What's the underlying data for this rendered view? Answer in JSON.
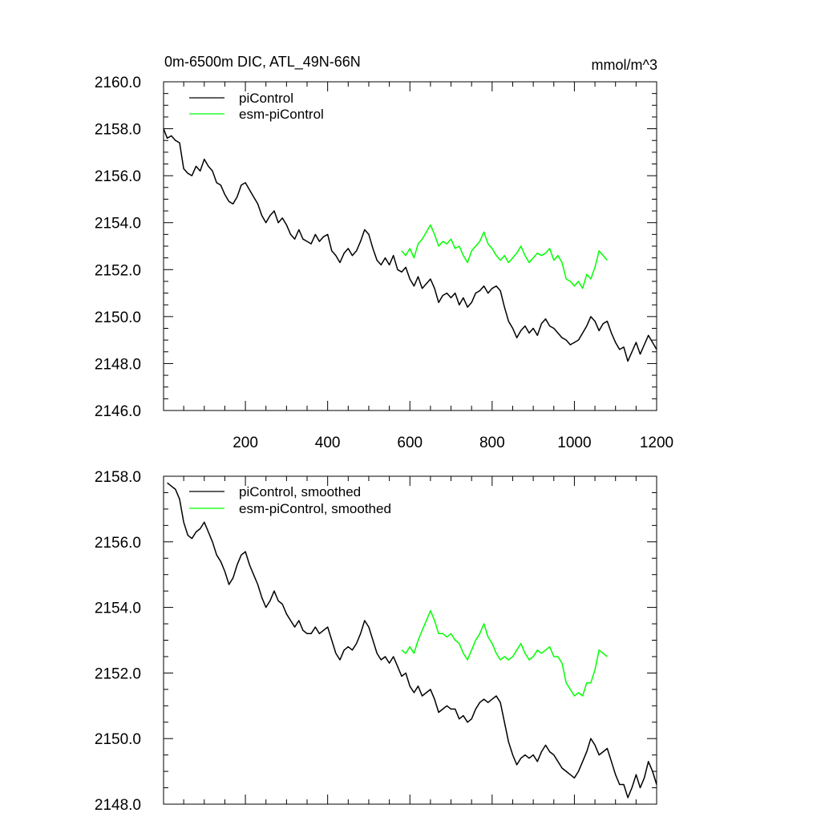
{
  "chart_data": [
    {
      "type": "line",
      "title": "0m-6500m DIC, ATL_49N-66N",
      "units": "mmol/m^3",
      "xlabel": "",
      "ylabel": "",
      "xlim": [
        1,
        1200
      ],
      "ylim": [
        2146,
        2160
      ],
      "x_ticks": [
        200,
        400,
        600,
        800,
        1000,
        1200
      ],
      "y_ticks": [
        2146,
        2148,
        2150,
        2152,
        2154,
        2156,
        2158,
        2160
      ],
      "x_tick_labels": [
        "200",
        "400",
        "600",
        "800",
        "1000",
        "1200"
      ],
      "y_tick_labels": [
        "2146.0",
        "2148.0",
        "2150.0",
        "2152.0",
        "2154.0",
        "2156.0",
        "2158.0",
        "2160.0"
      ],
      "legend_position": "top-left",
      "series": [
        {
          "name": "piControl",
          "color": "#000000",
          "x": [
            1,
            10,
            20,
            30,
            40,
            50,
            60,
            70,
            80,
            90,
            100,
            110,
            120,
            130,
            140,
            150,
            160,
            170,
            180,
            190,
            200,
            210,
            220,
            230,
            240,
            250,
            260,
            270,
            280,
            290,
            300,
            310,
            320,
            330,
            340,
            350,
            360,
            370,
            380,
            390,
            400,
            410,
            420,
            430,
            440,
            450,
            460,
            470,
            480,
            490,
            500,
            510,
            520,
            530,
            540,
            550,
            560,
            570,
            580,
            590,
            600,
            610,
            620,
            630,
            640,
            650,
            660,
            670,
            680,
            690,
            700,
            710,
            720,
            730,
            740,
            750,
            760,
            770,
            780,
            790,
            800,
            810,
            820,
            830,
            840,
            850,
            860,
            870,
            880,
            890,
            900,
            910,
            920,
            930,
            940,
            950,
            960,
            970,
            980,
            990,
            1000,
            1010,
            1020,
            1030,
            1040,
            1050,
            1060,
            1070,
            1080,
            1090,
            1100,
            1110,
            1120,
            1130,
            1140,
            1150,
            1160,
            1170,
            1180,
            1190,
            1200
          ],
          "values": [
            2158.0,
            2157.6,
            2157.7,
            2157.5,
            2157.4,
            2156.3,
            2156.1,
            2156.0,
            2156.4,
            2156.2,
            2156.7,
            2156.4,
            2156.2,
            2155.7,
            2155.6,
            2155.2,
            2154.9,
            2154.8,
            2155.1,
            2155.6,
            2155.7,
            2155.4,
            2155.1,
            2154.8,
            2154.3,
            2154.0,
            2154.3,
            2154.5,
            2154.0,
            2154.2,
            2153.9,
            2153.5,
            2153.3,
            2153.7,
            2153.3,
            2153.2,
            2153.1,
            2153.5,
            2153.2,
            2153.4,
            2153.5,
            2152.8,
            2152.6,
            2152.3,
            2152.7,
            2152.9,
            2152.6,
            2152.8,
            2153.2,
            2153.7,
            2153.5,
            2152.9,
            2152.4,
            2152.2,
            2152.5,
            2152.2,
            2152.6,
            2152.0,
            2151.9,
            2152.1,
            2151.6,
            2151.3,
            2151.7,
            2151.2,
            2151.4,
            2151.6,
            2151.2,
            2150.6,
            2150.9,
            2151.0,
            2150.8,
            2151.0,
            2150.5,
            2150.8,
            2150.4,
            2150.6,
            2151.0,
            2151.1,
            2151.3,
            2151.0,
            2151.2,
            2151.3,
            2151.1,
            2150.4,
            2149.8,
            2149.5,
            2149.1,
            2149.4,
            2149.6,
            2149.3,
            2149.5,
            2149.2,
            2149.7,
            2149.9,
            2149.6,
            2149.5,
            2149.3,
            2149.1,
            2149.0,
            2148.8,
            2148.9,
            2149.0,
            2149.3,
            2149.6,
            2150.0,
            2149.8,
            2149.4,
            2149.7,
            2149.8,
            2149.3,
            2148.9,
            2148.6,
            2148.7,
            2148.1,
            2148.5,
            2148.9,
            2148.4,
            2148.8,
            2149.2,
            2148.9,
            2148.6
          ]
        },
        {
          "name": "esm-piControl",
          "color": "#00ff00",
          "x": [
            580,
            590,
            600,
            610,
            620,
            630,
            640,
            650,
            660,
            670,
            680,
            690,
            700,
            710,
            720,
            730,
            740,
            750,
            760,
            770,
            780,
            790,
            800,
            810,
            820,
            830,
            840,
            850,
            860,
            870,
            880,
            890,
            900,
            910,
            920,
            930,
            940,
            950,
            960,
            970,
            980,
            990,
            1000,
            1010,
            1020,
            1030,
            1040,
            1050,
            1060,
            1070,
            1080
          ],
          "values": [
            2152.8,
            2152.6,
            2152.9,
            2152.5,
            2153.1,
            2153.3,
            2153.6,
            2153.9,
            2153.5,
            2153.0,
            2153.2,
            2153.1,
            2153.3,
            2152.9,
            2153.0,
            2152.6,
            2152.3,
            2152.8,
            2153.0,
            2153.2,
            2153.6,
            2153.1,
            2152.9,
            2152.6,
            2152.4,
            2152.6,
            2152.3,
            2152.5,
            2152.7,
            2153.0,
            2152.6,
            2152.3,
            2152.5,
            2152.7,
            2152.6,
            2152.7,
            2152.9,
            2152.4,
            2152.6,
            2152.3,
            2151.6,
            2151.5,
            2151.3,
            2151.5,
            2151.2,
            2151.8,
            2151.6,
            2152.1,
            2152.8,
            2152.6,
            2152.4
          ]
        }
      ]
    },
    {
      "type": "line",
      "title": "",
      "xlabel": "",
      "ylabel": "",
      "xlim": [
        1,
        1200
      ],
      "ylim": [
        2148,
        2158
      ],
      "x_ticks": [
        200,
        400,
        600,
        800,
        1000,
        1200
      ],
      "y_ticks": [
        2148,
        2150,
        2152,
        2154,
        2156,
        2158
      ],
      "y_tick_labels": [
        "2148.0",
        "2150.0",
        "2152.0",
        "2154.0",
        "2156.0",
        "2158.0"
      ],
      "legend_position": "top-left",
      "series": [
        {
          "name": "piControl, smoothed",
          "color": "#000000",
          "x": [
            10,
            20,
            30,
            40,
            50,
            60,
            70,
            80,
            90,
            100,
            110,
            120,
            130,
            140,
            150,
            160,
            170,
            180,
            190,
            200,
            210,
            220,
            230,
            240,
            250,
            260,
            270,
            280,
            290,
            300,
            310,
            320,
            330,
            340,
            350,
            360,
            370,
            380,
            390,
            400,
            410,
            420,
            430,
            440,
            450,
            460,
            470,
            480,
            490,
            500,
            510,
            520,
            530,
            540,
            550,
            560,
            570,
            580,
            590,
            600,
            610,
            620,
            630,
            640,
            650,
            660,
            670,
            680,
            690,
            700,
            710,
            720,
            730,
            740,
            750,
            760,
            770,
            780,
            790,
            800,
            810,
            820,
            830,
            840,
            850,
            860,
            870,
            880,
            890,
            900,
            910,
            920,
            930,
            940,
            950,
            960,
            970,
            980,
            990,
            1000,
            1010,
            1020,
            1030,
            1040,
            1050,
            1060,
            1070,
            1080,
            1090,
            1100,
            1110,
            1120,
            1130,
            1140,
            1150,
            1160,
            1170,
            1180,
            1190,
            1200
          ],
          "values": [
            2157.8,
            2157.7,
            2157.6,
            2157.3,
            2156.6,
            2156.2,
            2156.1,
            2156.3,
            2156.4,
            2156.6,
            2156.3,
            2156.0,
            2155.6,
            2155.4,
            2155.1,
            2154.7,
            2154.9,
            2155.3,
            2155.6,
            2155.7,
            2155.3,
            2155.0,
            2154.7,
            2154.3,
            2154.0,
            2154.2,
            2154.5,
            2154.2,
            2154.1,
            2153.8,
            2153.6,
            2153.4,
            2153.6,
            2153.3,
            2153.2,
            2153.2,
            2153.4,
            2153.2,
            2153.3,
            2153.4,
            2153.0,
            2152.6,
            2152.4,
            2152.7,
            2152.8,
            2152.7,
            2152.9,
            2153.2,
            2153.6,
            2153.4,
            2153.0,
            2152.6,
            2152.4,
            2152.5,
            2152.3,
            2152.5,
            2152.2,
            2151.9,
            2152.0,
            2151.6,
            2151.4,
            2151.6,
            2151.3,
            2151.4,
            2151.5,
            2151.2,
            2150.8,
            2150.9,
            2151.0,
            2150.9,
            2150.9,
            2150.6,
            2150.7,
            2150.5,
            2150.6,
            2150.9,
            2151.1,
            2151.2,
            2151.1,
            2151.2,
            2151.3,
            2151.1,
            2150.5,
            2149.9,
            2149.5,
            2149.2,
            2149.4,
            2149.5,
            2149.4,
            2149.5,
            2149.3,
            2149.6,
            2149.8,
            2149.6,
            2149.5,
            2149.3,
            2149.1,
            2149.0,
            2148.9,
            2148.8,
            2149.0,
            2149.3,
            2149.6,
            2150.0,
            2149.8,
            2149.5,
            2149.6,
            2149.7,
            2149.3,
            2148.9,
            2148.6,
            2148.6,
            2148.2,
            2148.5,
            2148.9,
            2148.5,
            2148.8,
            2149.3,
            2149.0,
            2148.6
          ]
        },
        {
          "name": "esm-piControl, smoothed",
          "color": "#00ff00",
          "x": [
            580,
            590,
            600,
            610,
            620,
            630,
            640,
            650,
            660,
            670,
            680,
            690,
            700,
            710,
            720,
            730,
            740,
            750,
            760,
            770,
            780,
            790,
            800,
            810,
            820,
            830,
            840,
            850,
            860,
            870,
            880,
            890,
            900,
            910,
            920,
            930,
            940,
            950,
            960,
            970,
            980,
            990,
            1000,
            1010,
            1020,
            1030,
            1040,
            1050,
            1060,
            1070,
            1080
          ],
          "values": [
            2152.7,
            2152.6,
            2152.8,
            2152.6,
            2153.0,
            2153.3,
            2153.6,
            2153.9,
            2153.6,
            2153.2,
            2153.2,
            2153.1,
            2153.2,
            2153.0,
            2152.9,
            2152.6,
            2152.4,
            2152.7,
            2153.0,
            2153.2,
            2153.5,
            2153.1,
            2152.9,
            2152.6,
            2152.4,
            2152.5,
            2152.4,
            2152.5,
            2152.7,
            2152.9,
            2152.6,
            2152.4,
            2152.5,
            2152.7,
            2152.6,
            2152.7,
            2152.8,
            2152.5,
            2152.5,
            2152.3,
            2151.7,
            2151.5,
            2151.3,
            2151.4,
            2151.3,
            2151.7,
            2151.7,
            2152.1,
            2152.7,
            2152.6,
            2152.5
          ]
        }
      ]
    }
  ]
}
